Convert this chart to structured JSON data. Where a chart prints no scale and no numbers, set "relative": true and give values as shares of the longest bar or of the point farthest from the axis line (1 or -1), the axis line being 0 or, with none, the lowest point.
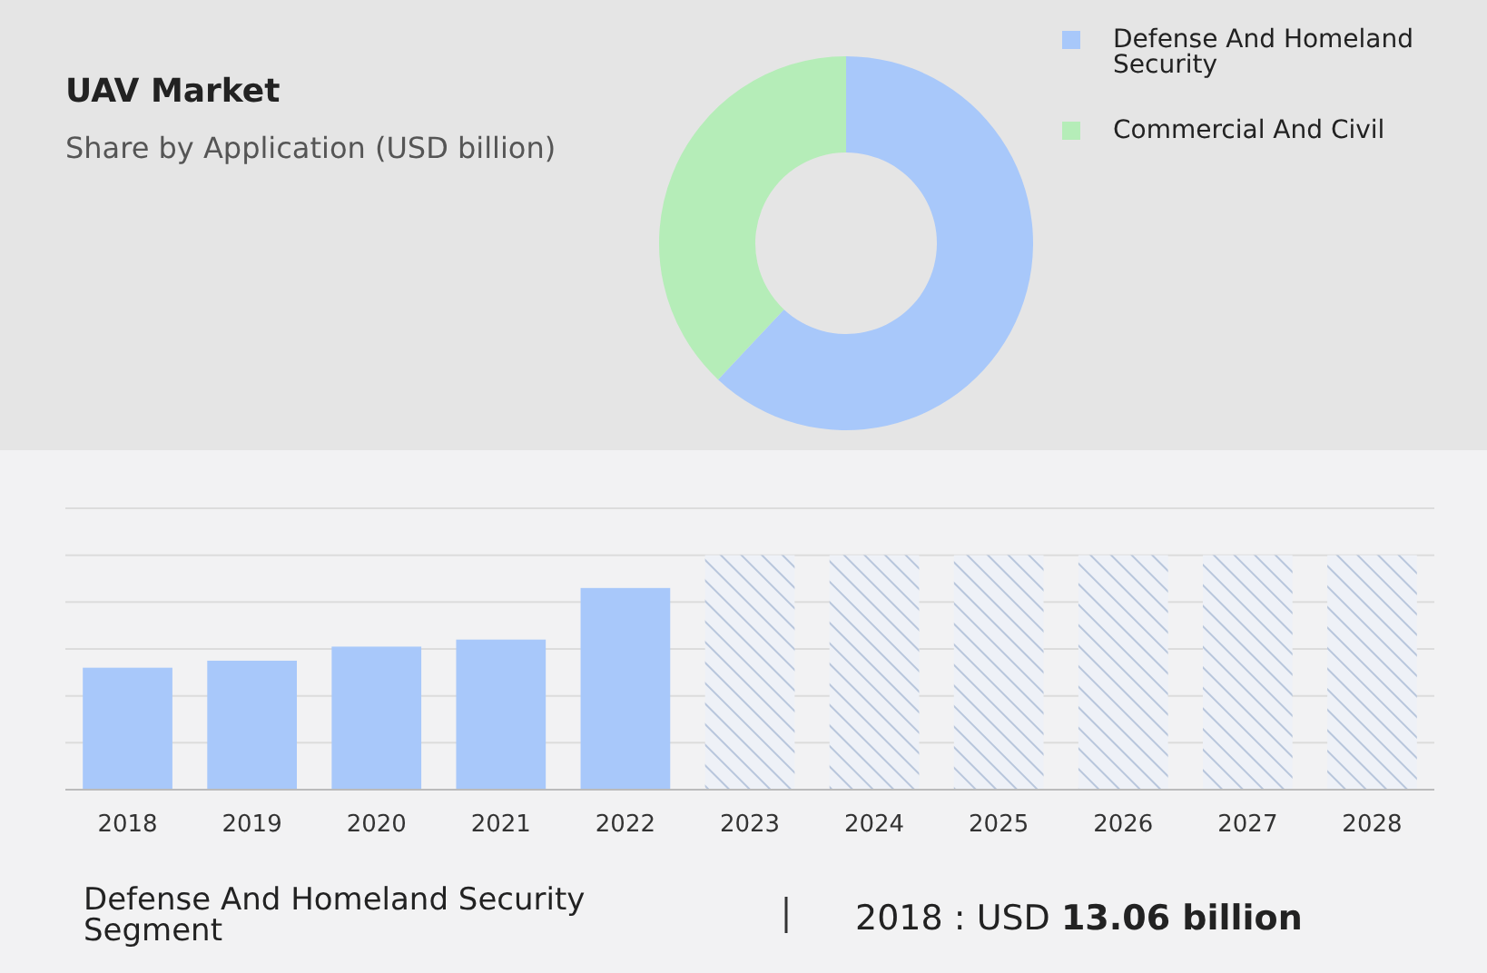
{
  "chart_data": [
    {
      "type": "donut",
      "title": "UAV Market",
      "subtitle": "Share by Application (USD billion)",
      "categories": [
        "Defense And Homeland Security",
        "Commercial And Civil"
      ],
      "values": [
        62,
        38
      ],
      "colors": [
        "#a8c8fa",
        "#b5edb8"
      ],
      "legend": "top right"
    },
    {
      "type": "bar",
      "relative": true,
      "grid": "y",
      "categories": [
        "2018",
        "2019",
        "2020",
        "2021",
        "2022",
        "2023",
        "2024",
        "2025",
        "2026",
        "2027",
        "2028"
      ],
      "series": [
        {
          "color": "#a8c8fa",
          "values": [
            0.52,
            0.55,
            0.61,
            0.64,
            0.86,
            null,
            null,
            null,
            null,
            null,
            null
          ]
        },
        {
          "color": "#b8c6dc",
          "values": [
            null,
            null,
            null,
            null,
            null,
            1,
            1,
            1,
            1,
            1,
            1
          ]
        }
      ],
      "annotations": [
        "Defense And Homeland Security Segment",
        "2018 : USD",
        "13.06 billion"
      ]
    }
  ]
}
